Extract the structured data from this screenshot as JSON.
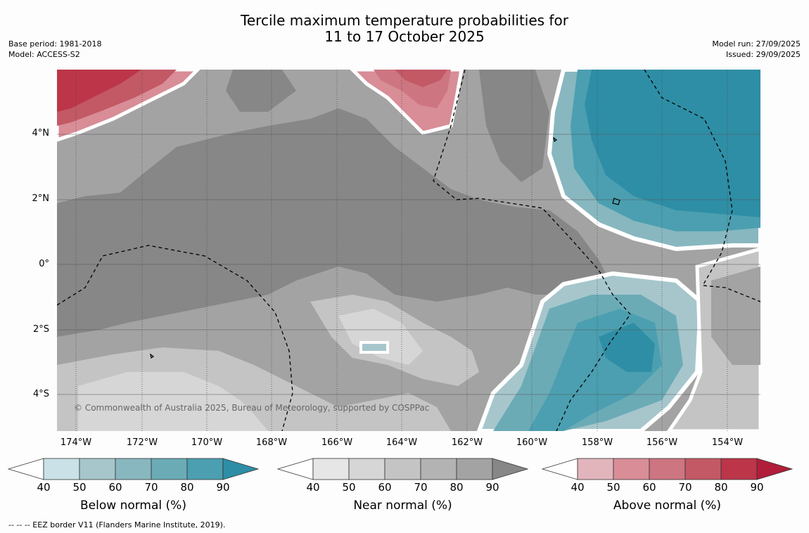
{
  "title_line1": "Tercile maximum temperature probabilities for",
  "title_line2": "11 to 17 October 2025",
  "base_period": "Base period: 1981-2018",
  "model": "Model: ACCESS-S2",
  "model_run": "Model run: 27/09/2025",
  "issued": "Issued: 29/09/2025",
  "copyright": "© Commonwealth of Australia 2025, Bureau of Meteorology, supported by COSPPac",
  "footnote": "--  --  -- EEZ border V11 (Flanders Marine Institute, 2019).",
  "lat_labels": [
    "4°N",
    "2°N",
    "0°",
    "2°S",
    "4°S"
  ],
  "lon_labels": [
    "174°W",
    "172°W",
    "170°W",
    "168°W",
    "166°W",
    "164°W",
    "162°W",
    "160°W",
    "158°W",
    "156°W",
    "154°W"
  ],
  "colorbars": [
    {
      "label": "Below normal (%)",
      "ticks": [
        "40",
        "50",
        "60",
        "70",
        "80",
        "90"
      ],
      "colors": [
        "#ffffff",
        "#c9e1e7",
        "#a6c6cc",
        "#88b7bf",
        "#6babb6",
        "#4b9fb0",
        "#2e8ea5"
      ]
    },
    {
      "label": "Near normal (%)",
      "ticks": [
        "40",
        "50",
        "60",
        "70",
        "80",
        "90"
      ],
      "colors": [
        "#ffffff",
        "#e6e6e6",
        "#d6d6d6",
        "#c4c4c4",
        "#b3b3b3",
        "#a3a3a3",
        "#878787"
      ]
    },
    {
      "label": "Above normal (%)",
      "ticks": [
        "40",
        "50",
        "60",
        "70",
        "80",
        "90"
      ],
      "colors": [
        "#ffffff",
        "#e1b5bb",
        "#d88d97",
        "#cd7580",
        "#c25965",
        "#bc3549",
        "#b01e3a"
      ]
    }
  ]
}
